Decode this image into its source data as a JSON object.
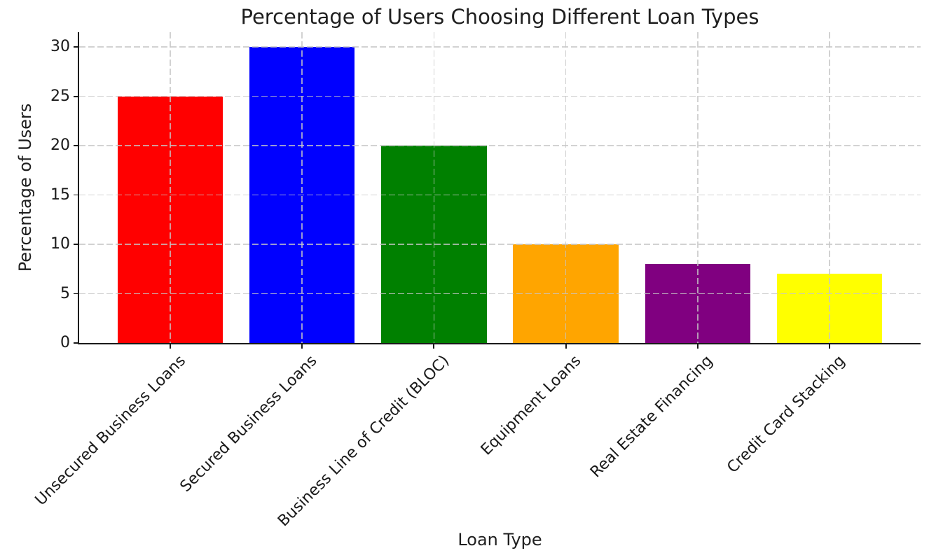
{
  "chart_data": {
    "type": "bar",
    "title": "Percentage of Users Choosing Different Loan Types",
    "xlabel": "Loan Type",
    "ylabel": "Percentage of Users",
    "categories": [
      "Unsecured Business Loans",
      "Secured Business Loans",
      "Business Line of Credit (BLOC)",
      "Equipment Loans",
      "Real Estate Financing",
      "Credit Card Stacking"
    ],
    "values": [
      25,
      30,
      20,
      10,
      8,
      7
    ],
    "bar_colors": [
      "#ff0000",
      "#0000ff",
      "#008000",
      "#ffa500",
      "#800080",
      "#ffff00"
    ],
    "yticks": [
      0,
      5,
      10,
      15,
      20,
      25,
      30
    ],
    "ylim": [
      0,
      31.5
    ],
    "grid": "dashed, both axes, drawn over bars",
    "legend": "none"
  }
}
